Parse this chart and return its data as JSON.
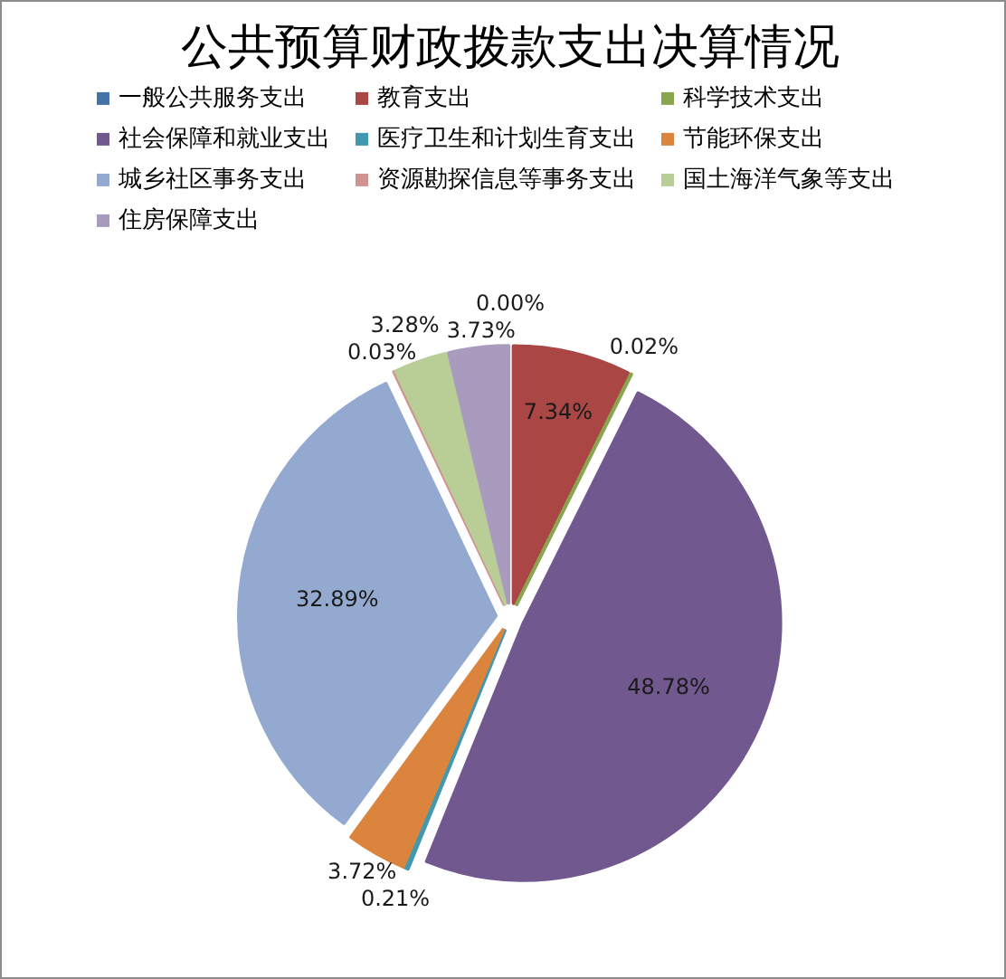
{
  "chart_data": {
    "type": "pie",
    "title": "公共预算财政拨款支出决算情况",
    "categories": [
      "一般公共服务支出",
      "教育支出",
      "科学技术支出",
      "社会保障和就业支出",
      "医疗卫生和计划生育支出",
      "节能环保支出",
      "城乡社区事务支出",
      "资源勘探信息等事务支出",
      "国土海洋气象等支出",
      "住房保障支出"
    ],
    "values": [
      0,
      7.34,
      0.02,
      48.78,
      0.21,
      3.72,
      32.89,
      0.03,
      3.28,
      3.73
    ],
    "colors": [
      "#4572a7",
      "#aa4643",
      "#89a54e",
      "#71588f",
      "#4198af",
      "#db843d",
      "#93a9cf",
      "#d19392",
      "#b9cd96",
      "#a99bbd"
    ],
    "value_labels": [
      "0.00%",
      "7.34%",
      "0.02%",
      "48.78%",
      "0.21%",
      "3.72%",
      "32.89%",
      "0.03%",
      "3.28%",
      "3.73%"
    ],
    "legend": "top"
  }
}
